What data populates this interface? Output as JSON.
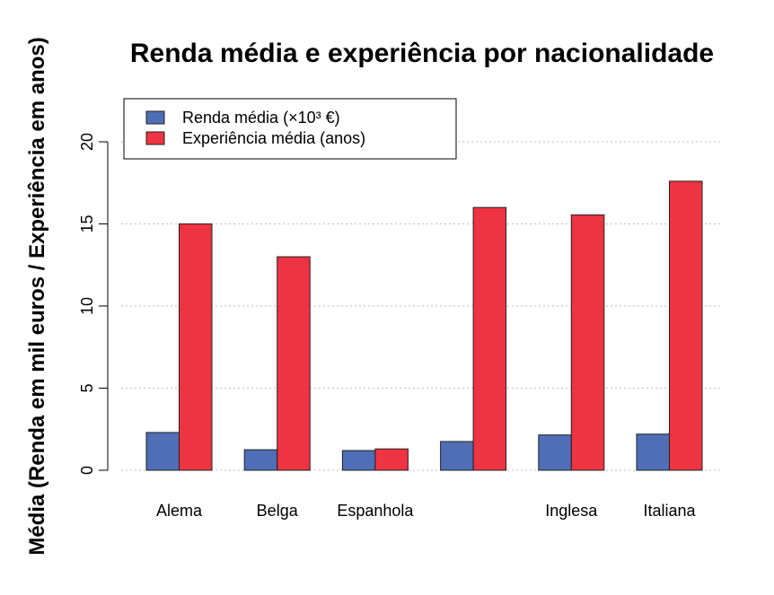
{
  "chart_data": {
    "type": "bar",
    "title": "Renda média e experiência por nacionalidade",
    "ylabel": "Média (Renda em mil euros / Experiência em anos)",
    "xlabel": "",
    "categories": [
      "Alema",
      "Belga",
      "Espanhola",
      "",
      "Inglesa",
      "Italiana"
    ],
    "series": [
      {
        "name": "Renda média (×10³ €)",
        "color": "#4F6EB5",
        "values": [
          2.3,
          1.25,
          1.2,
          1.75,
          2.15,
          2.2
        ]
      },
      {
        "name": "Experiência média (anos)",
        "color": "#EE3342",
        "values": [
          15.0,
          13.0,
          1.3,
          16.0,
          15.55,
          17.6
        ]
      }
    ],
    "ylim": [
      0,
      22
    ],
    "yticks": [
      "0",
      "5",
      "10",
      "15",
      "20"
    ],
    "grid": true,
    "legend_position": "top-left"
  }
}
